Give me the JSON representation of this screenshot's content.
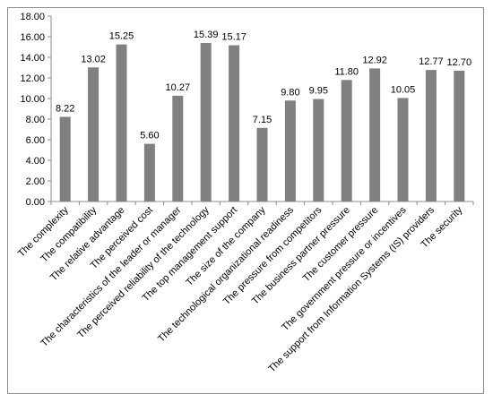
{
  "chart_data": {
    "type": "bar",
    "categories": [
      "The complexity",
      "The compatibility",
      "The relative advantage",
      "The perceived cost",
      "The characteristics of the leader or manager",
      "The perceived reliability of the technology",
      "The top management support",
      "The size of the company",
      "The technological organizational readiness",
      "The pressure from competitors",
      "The business partner pressure",
      "The customer pressure",
      "The government pressure or incentives",
      "The support from Information Systems (IS) providers",
      "The security"
    ],
    "values": [
      8.22,
      13.02,
      15.25,
      5.6,
      10.27,
      15.39,
      15.17,
      7.15,
      9.8,
      9.95,
      11.8,
      12.92,
      10.05,
      12.77,
      12.7
    ],
    "value_labels": [
      "8.22",
      "13.02",
      "15.25",
      "5.60",
      "10.27",
      "15.39",
      "15.17",
      "7.15",
      "9.80",
      "9.95",
      "11.80",
      "12.92",
      "10.05",
      "12.77",
      "12.70"
    ],
    "yticks": [
      "0.00",
      "2.00",
      "4.00",
      "6.00",
      "8.00",
      "10.00",
      "12.00",
      "14.00",
      "16.00",
      "18.00"
    ],
    "ylim": [
      0,
      18
    ],
    "title": "",
    "xlabel": "",
    "ylabel": "",
    "grid": false,
    "legend": "none",
    "bar_color": "#808080",
    "axis_color": "#8c8c8c"
  }
}
